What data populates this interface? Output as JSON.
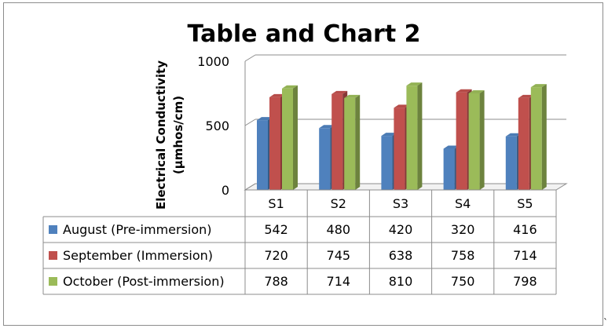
{
  "chart_data": {
    "type": "bar",
    "title": "Table and Chart 2",
    "ylabel_line1": "Electrical Conductivity",
    "ylabel_line2": "(µmhos/cm)",
    "xlabel": "",
    "ylim": [
      0,
      1000
    ],
    "yticks": [
      0,
      500,
      1000
    ],
    "grid": true,
    "categories": [
      "S1",
      "S2",
      "S3",
      "S4",
      "S5"
    ],
    "series": [
      {
        "name": "August (Pre-immersion)",
        "color": "#4f81bd",
        "values": [
          542,
          480,
          420,
          320,
          416
        ]
      },
      {
        "name": "September (Immersion)",
        "color": "#c0504d",
        "values": [
          720,
          745,
          638,
          758,
          714
        ]
      },
      {
        "name": "October (Post-immersion)",
        "color": "#9bbb59",
        "values": [
          788,
          714,
          810,
          750,
          798
        ]
      }
    ]
  },
  "corner_mark": "`"
}
